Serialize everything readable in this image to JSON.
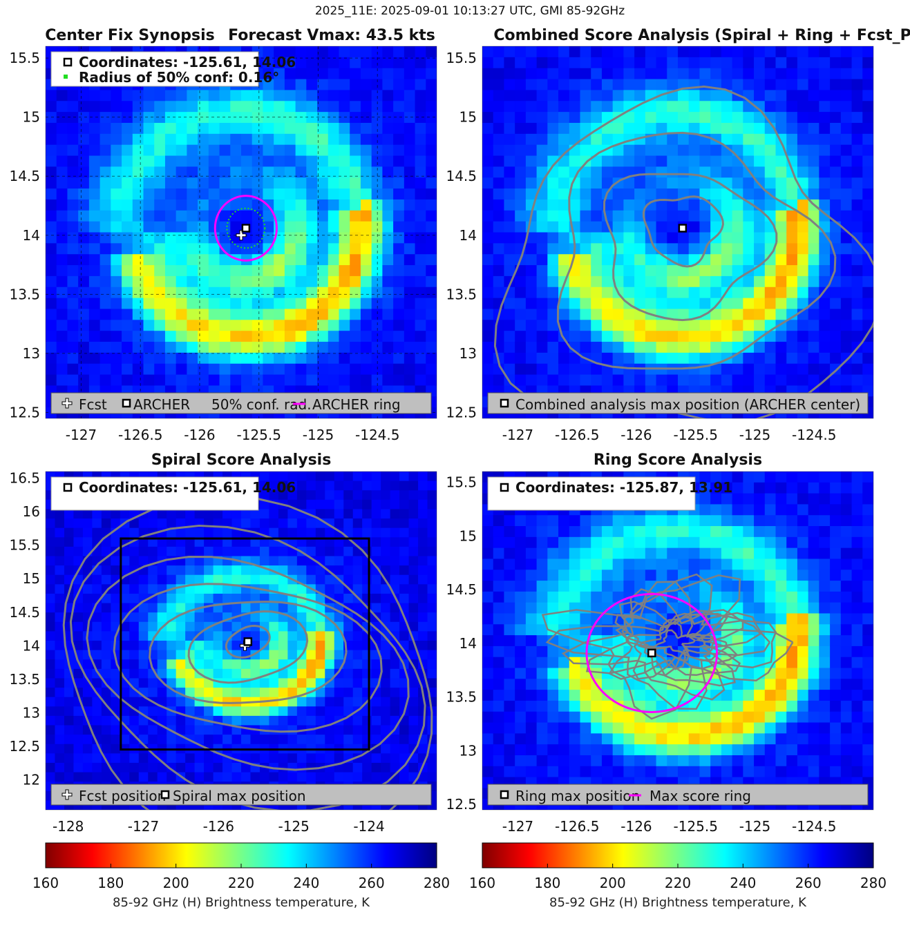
{
  "figure": {
    "suptitle": "2025_11E: 2025-09-01 10:13:27 UTC, GMI 85-92GHz"
  },
  "colorbar": {
    "label": "85-92 GHz (H) Brightness temperature, K",
    "ticks": [
      "160",
      "180",
      "200",
      "220",
      "240",
      "260",
      "280"
    ],
    "range": [
      160,
      280
    ],
    "colormap": "jet-reversed"
  },
  "chart_data": [
    {
      "type": "heatmap",
      "title": "Center Fix Synopsis",
      "title_right": "Forecast Vmax: 43.5 kts",
      "xlim": [
        -127.3,
        -124.0
      ],
      "ylim": [
        12.45,
        15.6
      ],
      "xticks": [
        "-127",
        "-126.5",
        "-126",
        "-125.5",
        "-125",
        "-124.5"
      ],
      "xtick_values": [
        -127,
        -126.5,
        -126,
        -125.5,
        -125,
        -124.5
      ],
      "yticks": [
        "15.5",
        "15",
        "14.5",
        "14",
        "13.5",
        "13",
        "12.5"
      ],
      "ytick_values": [
        15.5,
        15,
        14.5,
        14,
        13.5,
        13,
        12.5
      ],
      "grid": true,
      "info_box": [
        "Coordinates: -125.61, 14.06",
        "Radius of 50% conf: 0.16°"
      ],
      "legend_items": [
        "Fcst",
        "ARCHER",
        "50% conf. rad.",
        "ARCHER ring"
      ],
      "legend_placement": "bottom",
      "fcst_position": [
        -125.65,
        14.0
      ],
      "archer_center": [
        -125.61,
        14.06
      ],
      "conf_radius_deg": 0.16,
      "ring_radius_deg": 0.26
    },
    {
      "type": "heatmap",
      "title": "Combined Score Analysis (Spiral + Ring + Fcst_Pe",
      "xlim": [
        -127.3,
        -124.0
      ],
      "ylim": [
        12.45,
        15.6
      ],
      "xticks": [
        "-127",
        "-126.5",
        "-126",
        "-125.5",
        "-125",
        "-124.5"
      ],
      "xtick_values": [
        -127,
        -126.5,
        -126,
        -125.5,
        -125,
        -124.5
      ],
      "yticks": [
        "15.5",
        "15",
        "14.5",
        "14",
        "13.5",
        "13",
        "12.5"
      ],
      "ytick_values": [
        15.5,
        15,
        14.5,
        14,
        13.5,
        13,
        12.5
      ],
      "legend_items": [
        "Combined analysis max position (ARCHER center)"
      ],
      "legend_placement": "bottom",
      "max_position": [
        -125.61,
        14.06
      ],
      "contour_radii_deg": [
        0.3,
        0.65,
        1.05,
        1.45
      ]
    },
    {
      "type": "heatmap",
      "title": "Spiral Score Analysis",
      "xlim": [
        -128.3,
        -123.1
      ],
      "ylim": [
        11.55,
        16.6
      ],
      "xticks": [
        "-128",
        "-127",
        "-126",
        "-125",
        "-124"
      ],
      "xtick_values": [
        -128,
        -127,
        -126,
        -125,
        -124
      ],
      "yticks": [
        "16.5",
        "16",
        "15.5",
        "15",
        "14.5",
        "14",
        "13.5",
        "13",
        "12.5",
        "12"
      ],
      "ytick_values": [
        16.5,
        16,
        15.5,
        15,
        14.5,
        14,
        13.5,
        13,
        12.5,
        12
      ],
      "info_box": [
        "Coordinates: -125.61, 14.06"
      ],
      "legend_items": [
        "Fcst position",
        "Spiral max position"
      ],
      "legend_placement": "bottom",
      "fcst_position": [
        -125.65,
        14.0
      ],
      "spiral_max": [
        -125.61,
        14.06
      ],
      "search_box": [
        -127.3,
        12.45,
        -124.0,
        15.6
      ]
    },
    {
      "type": "heatmap",
      "title": "Ring Score Analysis",
      "xlim": [
        -127.3,
        -124.0
      ],
      "ylim": [
        12.45,
        15.6
      ],
      "xticks": [
        "-127",
        "-126.5",
        "-126",
        "-125.5",
        "-125",
        "-124.5"
      ],
      "xtick_values": [
        -127,
        -126.5,
        -126,
        -125.5,
        -125,
        -124.5
      ],
      "yticks": [
        "15.5",
        "15",
        "14.5",
        "14",
        "13.5",
        "13",
        "12.5"
      ],
      "ytick_values": [
        15.5,
        15,
        14.5,
        14,
        13.5,
        13,
        12.5
      ],
      "info_box": [
        "Coordinates: -125.87, 13.91"
      ],
      "legend_items": [
        "Ring max position",
        "Max score ring"
      ],
      "legend_placement": "bottom",
      "ring_max": [
        -125.87,
        13.91
      ],
      "ring_radius_deg": 0.55
    }
  ],
  "colors": {
    "magenta": "#ff00ff",
    "green": "#22dd22",
    "contour": "#808080",
    "legend_bg": "#bfbfbf"
  }
}
